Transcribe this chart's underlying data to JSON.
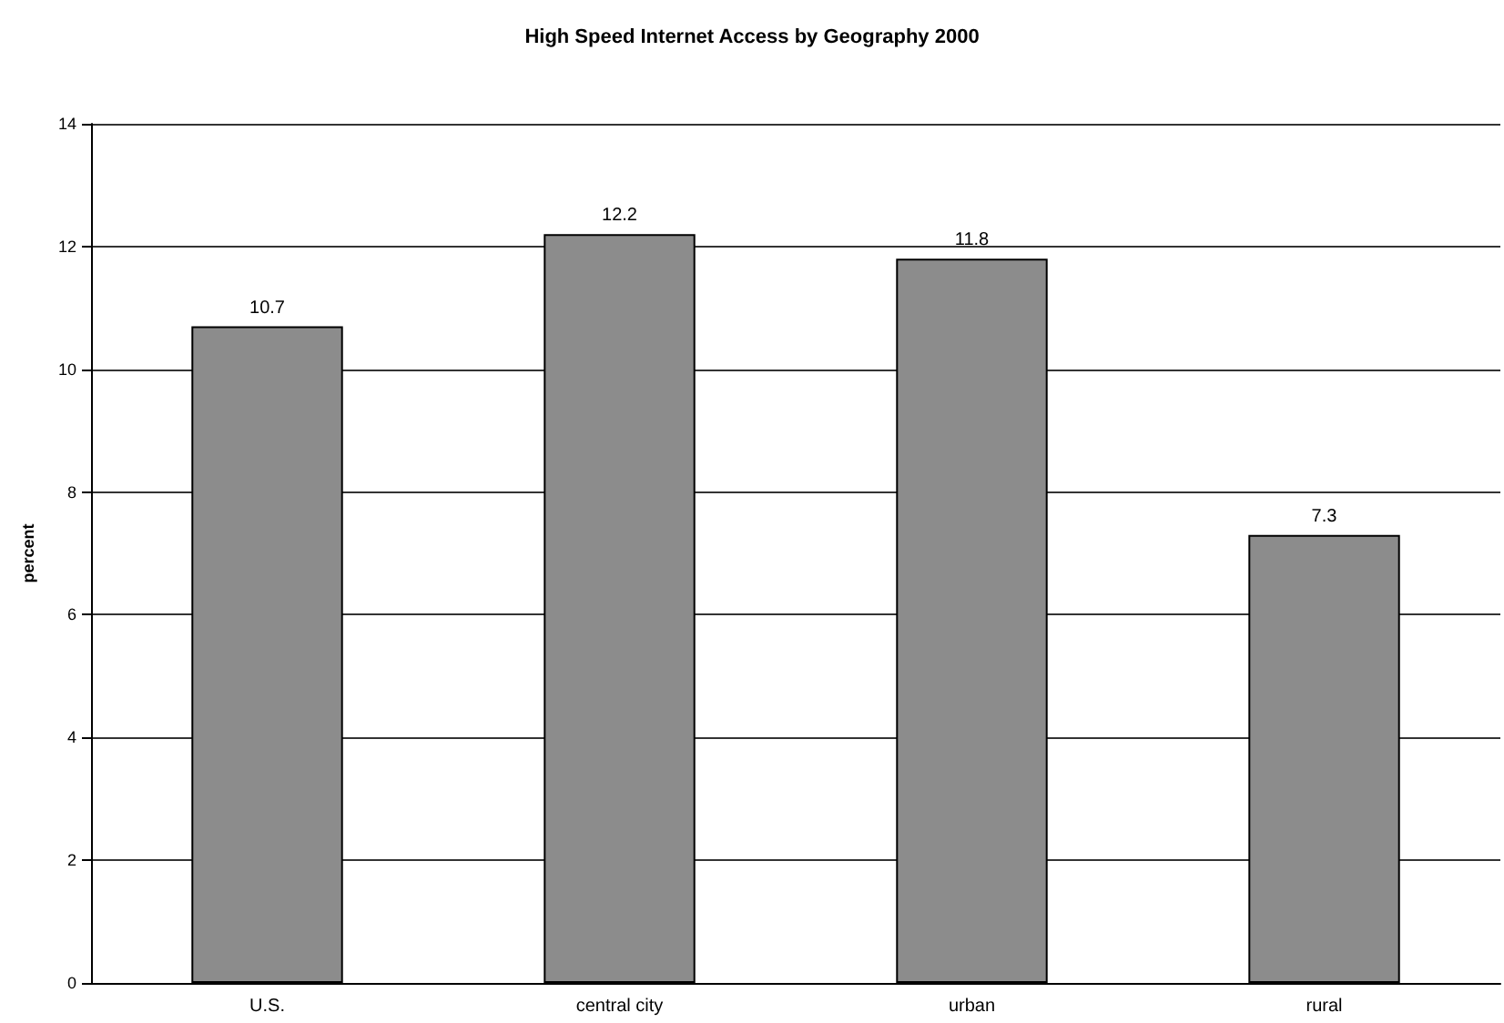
{
  "chart_data": {
    "type": "bar",
    "title": "High Speed Internet Access by Geography 2000",
    "ylabel": "percent",
    "categories": [
      "U.S.",
      "central city",
      "urban",
      "rural"
    ],
    "values": [
      10.7,
      12.2,
      11.8,
      7.3
    ],
    "color": "#8c8c8c",
    "ylim": [
      0,
      14
    ],
    "yticks": [
      0,
      2,
      4,
      6,
      8,
      10,
      12,
      14
    ],
    "grid": "y",
    "data_labels": true
  }
}
